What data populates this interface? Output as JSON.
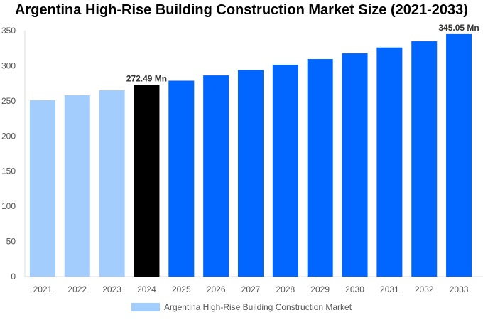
{
  "chart_data": {
    "type": "bar",
    "title": "Argentina High-Rise Building Construction Market Size (2021-2033)",
    "categories": [
      "2021",
      "2022",
      "2023",
      "2024",
      "2025",
      "2026",
      "2027",
      "2028",
      "2029",
      "2030",
      "2031",
      "2032",
      "2033"
    ],
    "series": [
      {
        "name": "Argentina High-Rise Building Construction Market",
        "values": [
          251,
          258,
          265,
          272.49,
          278.7,
          286.2,
          293.9,
          301.4,
          309.5,
          317.6,
          326.0,
          334.8,
          345.05
        ]
      }
    ],
    "data_labels": {
      "2024": "272.49 Mn",
      "2033": "345.05 Mn"
    },
    "ylim": [
      0,
      350
    ],
    "yticks": [
      0,
      50,
      100,
      150,
      200,
      250,
      300,
      350
    ],
    "grid": false,
    "legend_position": "bottom",
    "colors": {
      "historical": "#a3cdfd",
      "current": "#000000",
      "forecast": "#0066ff"
    },
    "xlabel": "",
    "ylabel": ""
  }
}
